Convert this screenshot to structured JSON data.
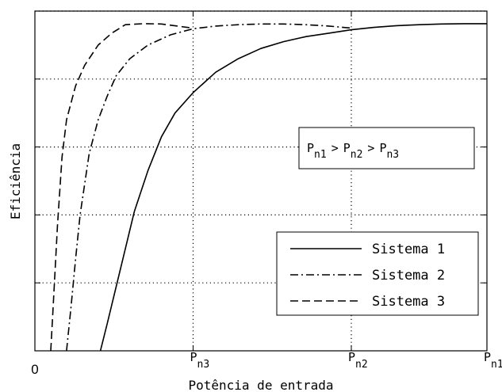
{
  "chart_data": {
    "type": "line",
    "title": "",
    "xlabel": "Potência de entrada",
    "ylabel": "Eficiência",
    "xlim": [
      0,
      1
    ],
    "ylim": [
      0,
      1
    ],
    "grid": true,
    "legend_position": "bottom-right",
    "x_ticks": [
      {
        "value": 0,
        "label": "0"
      },
      {
        "value": 0.35,
        "base": "P",
        "sub": "n3"
      },
      {
        "value": 0.7,
        "base": "P",
        "sub": "n2"
      },
      {
        "value": 1.0,
        "base": "P",
        "sub": "n1"
      }
    ],
    "y_gridlines": [
      0.2,
      0.4,
      0.6,
      0.8,
      1.0
    ],
    "annotation": {
      "parts": [
        {
          "base": "P",
          "sub": "n1"
        },
        {
          "op": ">"
        },
        {
          "base": "P",
          "sub": "n2"
        },
        {
          "op": ">"
        },
        {
          "base": "P",
          "sub": "n3"
        }
      ]
    },
    "series": [
      {
        "name": "Sistema 1",
        "style": "solid",
        "x": [
          0.145,
          0.16,
          0.18,
          0.2,
          0.22,
          0.25,
          0.28,
          0.31,
          0.35,
          0.4,
          0.45,
          0.5,
          0.55,
          0.6,
          0.65,
          0.7,
          0.75,
          0.8,
          0.85,
          0.9,
          0.95,
          1.0
        ],
        "y": [
          0.0,
          0.08,
          0.19,
          0.3,
          0.41,
          0.53,
          0.63,
          0.7,
          0.76,
          0.82,
          0.86,
          0.89,
          0.91,
          0.925,
          0.935,
          0.945,
          0.952,
          0.957,
          0.96,
          0.962,
          0.963,
          0.963
        ]
      },
      {
        "name": "Sistema 2",
        "style": "dashdot",
        "x": [
          0.07,
          0.08,
          0.09,
          0.1,
          0.12,
          0.14,
          0.16,
          0.18,
          0.21,
          0.25,
          0.3,
          0.35,
          0.4,
          0.45,
          0.5,
          0.55,
          0.6,
          0.65,
          0.7
        ],
        "y": [
          0.0,
          0.13,
          0.27,
          0.4,
          0.58,
          0.68,
          0.75,
          0.81,
          0.86,
          0.9,
          0.93,
          0.948,
          0.956,
          0.96,
          0.962,
          0.962,
          0.96,
          0.956,
          0.95
        ]
      },
      {
        "name": "Sistema 3",
        "style": "dashed",
        "x": [
          0.035,
          0.04,
          0.05,
          0.06,
          0.07,
          0.09,
          0.11,
          0.14,
          0.17,
          0.2,
          0.24,
          0.28,
          0.32,
          0.35
        ],
        "y": [
          0.0,
          0.12,
          0.37,
          0.57,
          0.68,
          0.78,
          0.84,
          0.9,
          0.935,
          0.96,
          0.963,
          0.962,
          0.955,
          0.95
        ]
      }
    ]
  }
}
